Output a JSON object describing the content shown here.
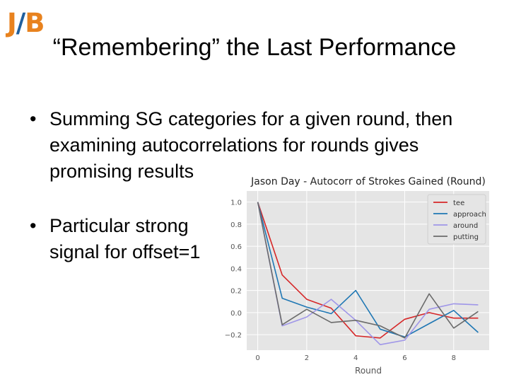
{
  "logo": {
    "left": "J",
    "slash": "/",
    "right": "B"
  },
  "slide": {
    "title": "“Remembering” the Last Performance",
    "bullets": [
      "Summing SG categories for a given round, then examining autocorrelations for rounds gives promising results",
      "Particular strong signal for offset=1"
    ]
  },
  "colors": {
    "tee": "#d62728",
    "approach": "#1f77b4",
    "around": "#9f96e8",
    "putting": "#6b6b6b",
    "logo_orange": "#e8821e",
    "logo_blue": "#1f5f9e"
  },
  "chart_data": {
    "type": "line",
    "title": "Jason Day - Autocorr of Strokes Gained (Round)",
    "xlabel": "Round",
    "ylabel": "",
    "x": [
      0,
      1,
      2,
      3,
      4,
      5,
      6,
      7,
      8,
      9
    ],
    "xlim": [
      -0.45,
      9.45
    ],
    "ylim": [
      -0.34,
      1.1
    ],
    "xticks": [
      0,
      2,
      4,
      6,
      8
    ],
    "yticks": [
      -0.2,
      0.0,
      0.2,
      0.4,
      0.6,
      0.8,
      1.0
    ],
    "ytick_labels": [
      "−0.2",
      "0.0",
      "0.2",
      "0.4",
      "0.6",
      "0.8",
      "1.0"
    ],
    "grid": true,
    "legend_position": "top-right",
    "series": [
      {
        "name": "tee",
        "color": "#d62728",
        "values": [
          1.0,
          0.34,
          0.12,
          0.04,
          -0.21,
          -0.23,
          -0.06,
          0.0,
          -0.05,
          -0.05
        ]
      },
      {
        "name": "approach",
        "color": "#1f77b4",
        "values": [
          1.0,
          0.13,
          0.05,
          -0.01,
          0.2,
          -0.15,
          -0.22,
          -0.1,
          0.02,
          -0.18
        ]
      },
      {
        "name": "around",
        "color": "#9f96e8",
        "values": [
          1.0,
          -0.12,
          -0.04,
          0.12,
          -0.07,
          -0.29,
          -0.25,
          0.03,
          0.08,
          0.07
        ]
      },
      {
        "name": "putting",
        "color": "#6b6b6b",
        "values": [
          1.0,
          -0.11,
          0.03,
          -0.09,
          -0.07,
          -0.12,
          -0.23,
          0.17,
          -0.14,
          0.01
        ]
      }
    ]
  }
}
